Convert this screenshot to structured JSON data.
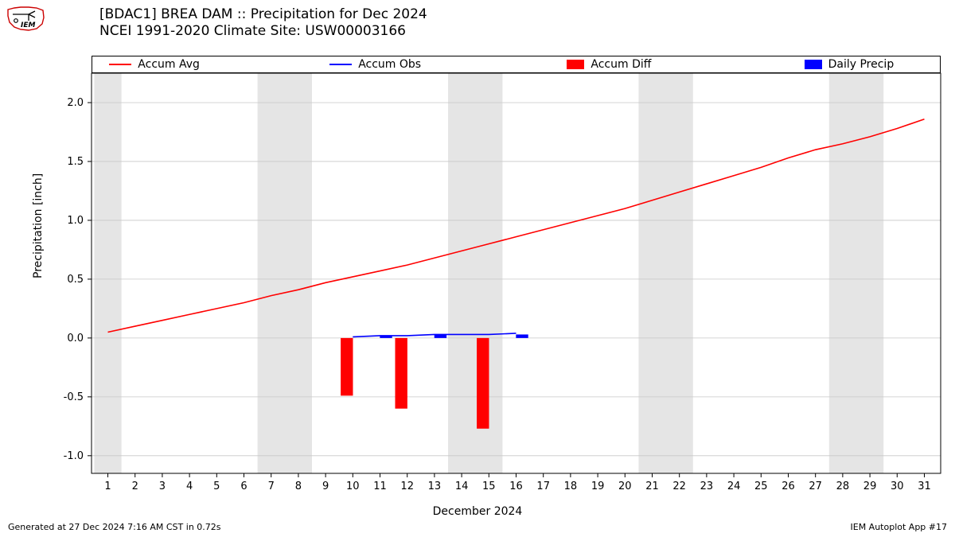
{
  "title": {
    "line1": "[BDAC1] BREA DAM :: Precipitation for Dec 2024",
    "line2": "NCEI 1991-2020 Climate Site: USW00003166"
  },
  "footer": {
    "left": "Generated at 27 Dec 2024 7:16 AM CST in 0.72s",
    "right": "IEM Autoplot App #17"
  },
  "chart": {
    "type": "combined-line-bar",
    "background_color": "#ffffff",
    "plot_border_color": "#000000",
    "grid_color": "#c7c7c7",
    "weekend_band_color": "#e5e5e5",
    "xlabel": "December 2024",
    "ylabel": "Precipitation [inch]",
    "label_fontsize": 14,
    "x": {
      "days": [
        1,
        2,
        3,
        4,
        5,
        6,
        7,
        8,
        9,
        10,
        11,
        12,
        13,
        14,
        15,
        16,
        17,
        18,
        19,
        20,
        21,
        22,
        23,
        24,
        25,
        26,
        27,
        28,
        29,
        30,
        31
      ],
      "xlim": [
        0.4,
        31.6
      ],
      "tick_fontsize": 13
    },
    "y": {
      "ylim": [
        -1.15,
        2.25
      ],
      "ticks": [
        -1.0,
        -0.5,
        0.0,
        0.5,
        1.0,
        1.5,
        2.0
      ],
      "tick_fontsize": 13
    },
    "weekend_bands": [
      {
        "start": 0.5,
        "end": 1.5
      },
      {
        "start": 6.5,
        "end": 8.5
      },
      {
        "start": 13.5,
        "end": 15.5
      },
      {
        "start": 20.5,
        "end": 22.5
      },
      {
        "start": 27.5,
        "end": 29.5
      }
    ],
    "series": {
      "accum_avg": {
        "label": "Accum Avg",
        "color": "#ff0000",
        "line_width": 1.6,
        "data": [
          [
            1,
            0.05
          ],
          [
            2,
            0.1
          ],
          [
            3,
            0.15
          ],
          [
            4,
            0.2
          ],
          [
            5,
            0.25
          ],
          [
            6,
            0.3
          ],
          [
            7,
            0.36
          ],
          [
            8,
            0.41
          ],
          [
            9,
            0.47
          ],
          [
            10,
            0.52
          ],
          [
            11,
            0.57
          ],
          [
            12,
            0.62
          ],
          [
            13,
            0.68
          ],
          [
            14,
            0.74
          ],
          [
            15,
            0.8
          ],
          [
            16,
            0.86
          ],
          [
            17,
            0.92
          ],
          [
            18,
            0.98
          ],
          [
            19,
            1.04
          ],
          [
            20,
            1.1
          ],
          [
            21,
            1.17
          ],
          [
            22,
            1.24
          ],
          [
            23,
            1.31
          ],
          [
            24,
            1.38
          ],
          [
            25,
            1.45
          ],
          [
            26,
            1.53
          ],
          [
            27,
            1.6
          ],
          [
            28,
            1.65
          ],
          [
            29,
            1.71
          ],
          [
            30,
            1.78
          ],
          [
            31,
            1.86
          ]
        ]
      },
      "accum_obs": {
        "label": "Accum Obs",
        "color": "#0000ff",
        "line_width": 1.6,
        "data": [
          [
            10,
            0.01
          ],
          [
            11,
            0.02
          ],
          [
            12,
            0.02
          ],
          [
            13,
            0.03
          ],
          [
            15,
            0.03
          ],
          [
            16,
            0.04
          ]
        ]
      },
      "accum_diff": {
        "label": "Accum Diff",
        "color": "#ff0000",
        "bar_width": 0.45,
        "data": [
          [
            10,
            -0.49
          ],
          [
            12,
            -0.6
          ],
          [
            15,
            -0.77
          ]
        ]
      },
      "daily_precip": {
        "label": "Daily Precip",
        "color": "#0000ff",
        "bar_width": 0.45,
        "data": [
          [
            11,
            0.02
          ],
          [
            13,
            0.03
          ],
          [
            16,
            0.03
          ]
        ]
      }
    },
    "legend": {
      "items": [
        {
          "key": "accum_avg",
          "kind": "line"
        },
        {
          "key": "accum_obs",
          "kind": "line"
        },
        {
          "key": "accum_diff",
          "kind": "patch"
        },
        {
          "key": "daily_precip",
          "kind": "patch"
        }
      ],
      "positions_pct": [
        2,
        28,
        56,
        84
      ],
      "fontsize": 14
    }
  }
}
